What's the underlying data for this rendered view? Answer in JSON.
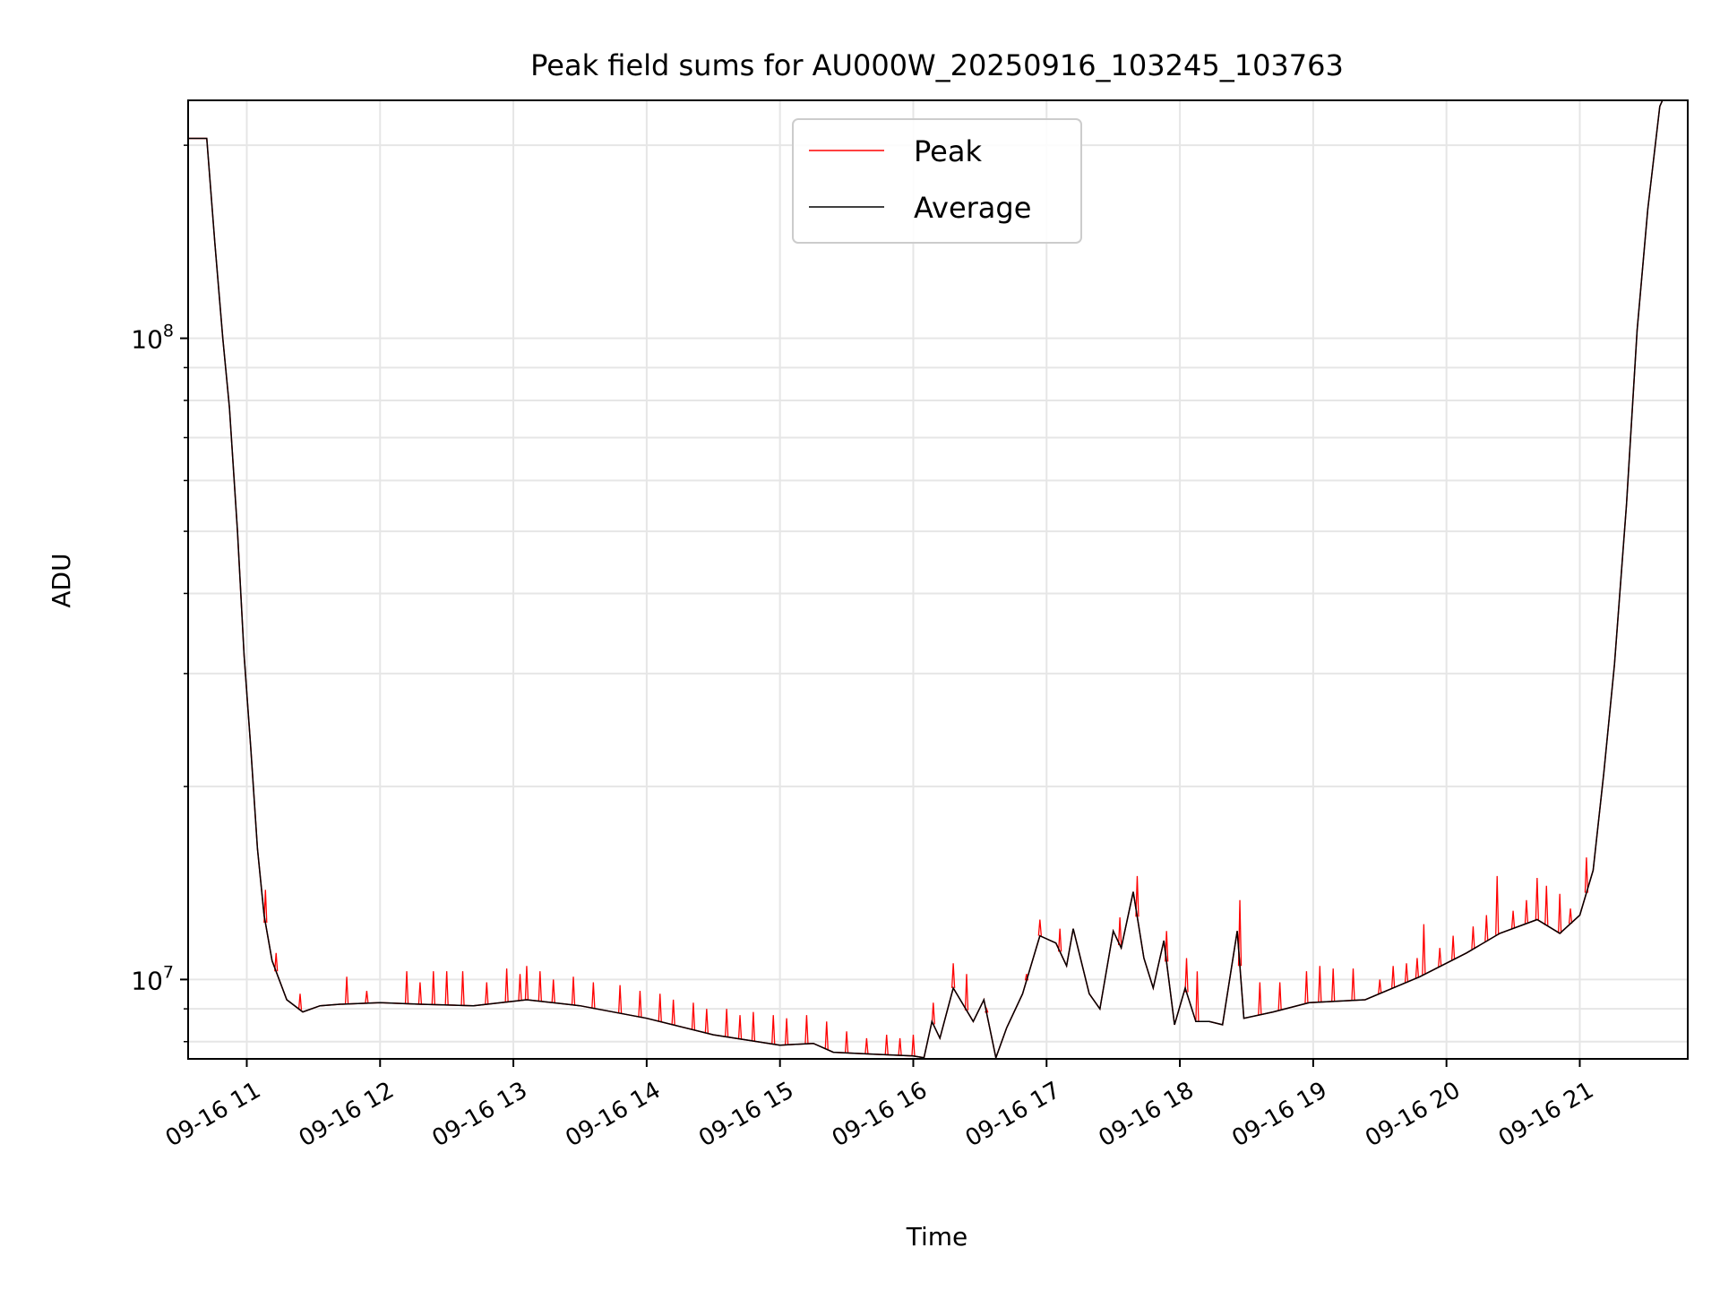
{
  "chart_data": {
    "type": "line",
    "title": "Peak field sums for AU000W_20250916_103245_103763",
    "xlabel": "Time",
    "ylabel": "ADU",
    "yscale": "log",
    "xlim_hours": [
      10.56,
      21.81
    ],
    "ylim": [
      7520000,
      235000000
    ],
    "x_ticks": [
      {
        "hour": 11,
        "label": "09-16 11"
      },
      {
        "hour": 12,
        "label": "09-16 12"
      },
      {
        "hour": 13,
        "label": "09-16 13"
      },
      {
        "hour": 14,
        "label": "09-16 14"
      },
      {
        "hour": 15,
        "label": "09-16 15"
      },
      {
        "hour": 16,
        "label": "09-16 16"
      },
      {
        "hour": 17,
        "label": "09-16 17"
      },
      {
        "hour": 18,
        "label": "09-16 18"
      },
      {
        "hour": 19,
        "label": "09-16 19"
      },
      {
        "hour": 20,
        "label": "09-16 20"
      },
      {
        "hour": 21,
        "label": "09-16 21"
      }
    ],
    "y_major_ticks": [
      {
        "value": 10000000,
        "base": "10",
        "exp": "7"
      },
      {
        "value": 100000000,
        "base": "10",
        "exp": "8"
      }
    ],
    "y_minor_ticks": [
      8000000,
      9000000,
      20000000,
      30000000,
      40000000,
      50000000,
      60000000,
      70000000,
      80000000,
      90000000,
      200000000
    ],
    "grid": true,
    "legend": {
      "placement": "upper-center",
      "entries": [
        {
          "label": "Peak",
          "color": "#ff0000"
        },
        {
          "label": "Average",
          "color": "#000000"
        }
      ]
    },
    "series": [
      {
        "name": "Average",
        "color": "#000000",
        "points": [
          [
            10.56,
            205000000
          ],
          [
            10.7,
            205000000
          ],
          [
            10.76,
            141000000
          ],
          [
            10.82,
            100000000
          ],
          [
            10.87,
            78000000
          ],
          [
            10.93,
            50000000
          ],
          [
            10.98,
            32000000
          ],
          [
            11.03,
            23000000
          ],
          [
            11.08,
            16000000
          ],
          [
            11.13,
            12600000
          ],
          [
            11.19,
            10700000
          ],
          [
            11.3,
            9300000
          ],
          [
            11.42,
            8900000
          ],
          [
            11.55,
            9100000
          ],
          [
            11.7,
            9150000
          ],
          [
            12.0,
            9200000
          ],
          [
            12.3,
            9150000
          ],
          [
            12.7,
            9100000
          ],
          [
            13.1,
            9300000
          ],
          [
            13.5,
            9100000
          ],
          [
            14.0,
            8700000
          ],
          [
            14.5,
            8200000
          ],
          [
            15.0,
            7900000
          ],
          [
            15.25,
            7950000
          ],
          [
            15.4,
            7700000
          ],
          [
            15.7,
            7650000
          ],
          [
            16.0,
            7600000
          ],
          [
            16.08,
            7550000
          ],
          [
            16.14,
            8600000
          ],
          [
            16.2,
            8100000
          ],
          [
            16.3,
            9700000
          ],
          [
            16.45,
            8600000
          ],
          [
            16.53,
            9300000
          ],
          [
            16.62,
            7550000
          ],
          [
            16.7,
            8400000
          ],
          [
            16.82,
            9500000
          ],
          [
            16.95,
            11700000
          ],
          [
            17.07,
            11400000
          ],
          [
            17.15,
            10500000
          ],
          [
            17.2,
            12000000
          ],
          [
            17.32,
            9500000
          ],
          [
            17.4,
            9000000
          ],
          [
            17.5,
            11900000
          ],
          [
            17.56,
            11200000
          ],
          [
            17.65,
            13700000
          ],
          [
            17.73,
            10800000
          ],
          [
            17.8,
            9700000
          ],
          [
            17.88,
            11500000
          ],
          [
            17.96,
            8500000
          ],
          [
            18.04,
            9700000
          ],
          [
            18.12,
            8600000
          ],
          [
            18.22,
            8600000
          ],
          [
            18.32,
            8500000
          ],
          [
            18.43,
            11900000
          ],
          [
            18.48,
            8700000
          ],
          [
            18.7,
            8900000
          ],
          [
            18.97,
            9200000
          ],
          [
            19.39,
            9300000
          ],
          [
            19.8,
            10100000
          ],
          [
            20.15,
            11000000
          ],
          [
            20.4,
            11800000
          ],
          [
            20.68,
            12400000
          ],
          [
            20.85,
            11800000
          ],
          [
            21.0,
            12600000
          ],
          [
            21.1,
            14800000
          ],
          [
            21.18,
            21000000
          ],
          [
            21.26,
            31000000
          ],
          [
            21.35,
            55000000
          ],
          [
            21.43,
            103000000
          ],
          [
            21.51,
            159000000
          ],
          [
            21.6,
            230000000
          ],
          [
            21.64,
            240000000
          ],
          [
            21.81,
            240000000
          ]
        ]
      },
      {
        "name": "Peak",
        "color": "#ff0000",
        "spikes": [
          [
            11.14,
            13800000
          ],
          [
            11.22,
            11000000
          ],
          [
            11.4,
            9500000
          ],
          [
            11.75,
            10100000
          ],
          [
            11.9,
            9600000
          ],
          [
            12.2,
            10300000
          ],
          [
            12.3,
            9900000
          ],
          [
            12.4,
            10300000
          ],
          [
            12.5,
            10300000
          ],
          [
            12.62,
            10300000
          ],
          [
            12.8,
            9900000
          ],
          [
            12.95,
            10400000
          ],
          [
            13.05,
            10200000
          ],
          [
            13.1,
            10500000
          ],
          [
            13.2,
            10300000
          ],
          [
            13.3,
            10000000
          ],
          [
            13.45,
            10100000
          ],
          [
            13.6,
            9900000
          ],
          [
            13.8,
            9800000
          ],
          [
            13.95,
            9600000
          ],
          [
            14.1,
            9500000
          ],
          [
            14.2,
            9300000
          ],
          [
            14.35,
            9200000
          ],
          [
            14.45,
            9000000
          ],
          [
            14.6,
            9000000
          ],
          [
            14.7,
            8800000
          ],
          [
            14.8,
            8900000
          ],
          [
            14.95,
            8800000
          ],
          [
            15.05,
            8700000
          ],
          [
            15.2,
            8800000
          ],
          [
            15.35,
            8600000
          ],
          [
            15.5,
            8300000
          ],
          [
            15.65,
            8100000
          ],
          [
            15.8,
            8200000
          ],
          [
            15.9,
            8100000
          ],
          [
            16.0,
            8200000
          ],
          [
            16.15,
            9200000
          ],
          [
            16.3,
            10600000
          ],
          [
            16.4,
            10200000
          ],
          [
            16.55,
            9000000
          ],
          [
            16.85,
            10200000
          ],
          [
            16.95,
            12400000
          ],
          [
            17.1,
            12000000
          ],
          [
            17.55,
            12500000
          ],
          [
            17.68,
            14500000
          ],
          [
            17.9,
            11900000
          ],
          [
            18.05,
            10800000
          ],
          [
            18.13,
            10300000
          ],
          [
            18.45,
            13300000
          ],
          [
            18.6,
            9900000
          ],
          [
            18.75,
            9900000
          ],
          [
            18.95,
            10300000
          ],
          [
            19.05,
            10500000
          ],
          [
            19.15,
            10400000
          ],
          [
            19.3,
            10400000
          ],
          [
            19.5,
            10000000
          ],
          [
            19.6,
            10500000
          ],
          [
            19.7,
            10600000
          ],
          [
            19.78,
            10800000
          ],
          [
            19.83,
            12200000
          ],
          [
            19.95,
            11200000
          ],
          [
            20.05,
            11700000
          ],
          [
            20.2,
            12100000
          ],
          [
            20.3,
            12600000
          ],
          [
            20.38,
            14500000
          ],
          [
            20.5,
            12800000
          ],
          [
            20.6,
            13300000
          ],
          [
            20.68,
            14400000
          ],
          [
            20.75,
            14000000
          ],
          [
            20.85,
            13600000
          ],
          [
            20.93,
            12900000
          ],
          [
            21.05,
            15500000
          ]
        ]
      }
    ]
  }
}
